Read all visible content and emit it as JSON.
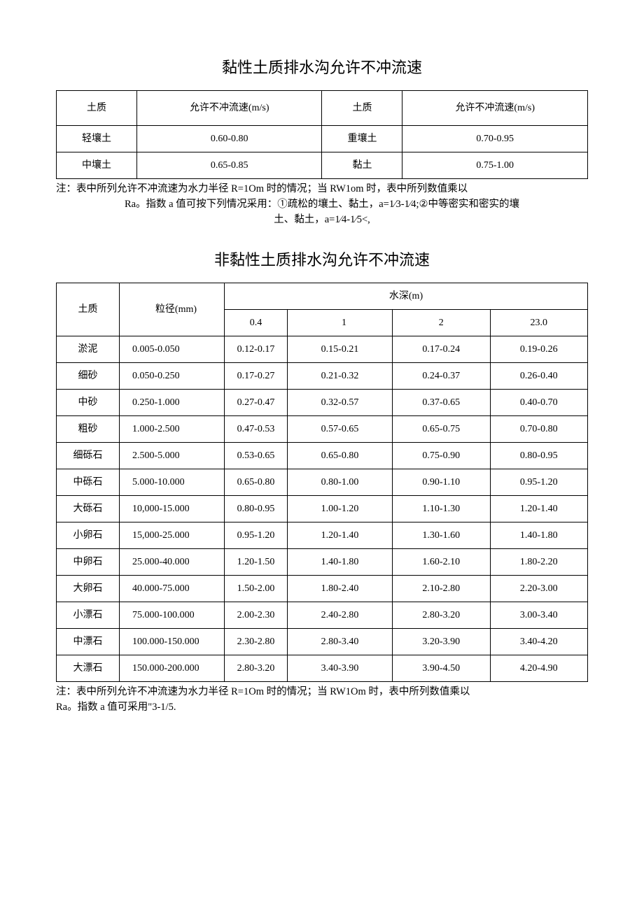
{
  "title1": "黏性土质排水沟允许不冲流速",
  "table1": {
    "headers": [
      "土质",
      "允许不冲流速(m/s)",
      "土质",
      "允许不冲流速(m/s)"
    ],
    "rows": [
      [
        "轻壤土",
        "0.60-0.80",
        "重壤土",
        "0.70-0.95"
      ],
      [
        "中壤土",
        "0.65-0.85",
        "黏土",
        "0.75-1.00"
      ]
    ]
  },
  "note1_line1": "注：表中所列允许不冲流速为水力半径 R=1Om 时的情况；当 RW1om 时，表中所列数值乘以",
  "note1_line2": "Ra。指数 a 值可按下列情况采用：①疏松的壤土、黏土，a=1⁄3-1⁄4;②中等密实和密实的壤",
  "note1_line3": "土、黏土，a=1⁄4-1⁄5<,",
  "title2": "非黏性土质排水沟允许不冲流速",
  "table2": {
    "header_soil": "土质",
    "header_size": "粒径(mm)",
    "header_depth": "水深(m)",
    "depth_cols": [
      "0.4",
      "1",
      "2",
      "23.0"
    ],
    "rows": [
      {
        "soil": "淤泥",
        "size": "0.005-0.050",
        "v": [
          "0.12-0.17",
          "0.15-0.21",
          "0.17-0.24",
          "0.19-0.26"
        ]
      },
      {
        "soil": "细砂",
        "size": "0.050-0.250",
        "v": [
          "0.17-0.27",
          "0.21-0.32",
          "0.24-0.37",
          "0.26-0.40"
        ]
      },
      {
        "soil": "中砂",
        "size": "0.250-1.000",
        "v": [
          "0.27-0.47",
          "0.32-0.57",
          "0.37-0.65",
          "0.40-0.70"
        ]
      },
      {
        "soil": "粗砂",
        "size": "1.000-2.500",
        "v": [
          "0.47-0.53",
          "0.57-0.65",
          "0.65-0.75",
          "0.70-0.80"
        ]
      },
      {
        "soil": "细砾石",
        "size": "2.500-5.000",
        "v": [
          "0.53-0.65",
          "0.65-0.80",
          "0.75-0.90",
          "0.80-0.95"
        ]
      },
      {
        "soil": "中砾石",
        "size": "5.000-10.000",
        "v": [
          "0.65-0.80",
          "0.80-1.00",
          "0.90-1.10",
          "0.95-1.20"
        ]
      },
      {
        "soil": "大砾石",
        "size": "10,000-15.000",
        "v": [
          "0.80-0.95",
          "1.00-1.20",
          "1.10-1.30",
          "1.20-1.40"
        ]
      },
      {
        "soil": "小卵石",
        "size": "15,000-25.000",
        "v": [
          "0.95-1.20",
          "1.20-1.40",
          "1.30-1.60",
          "1.40-1.80"
        ]
      },
      {
        "soil": "中卵石",
        "size": "25.000-40.000",
        "v": [
          "1.20-1.50",
          "1.40-1.80",
          "1.60-2.10",
          "1.80-2.20"
        ]
      },
      {
        "soil": "大卵石",
        "size": "40.000-75.000",
        "v": [
          "1.50-2.00",
          "1.80-2.40",
          "2.10-2.80",
          "2.20-3.00"
        ]
      },
      {
        "soil": "小漂石",
        "size": "75.000-100.000",
        "v": [
          "2.00-2.30",
          "2.40-2.80",
          "2.80-3.20",
          "3.00-3.40"
        ]
      },
      {
        "soil": "中漂石",
        "size": "100.000-150.000",
        "v": [
          "2.30-2.80",
          "2.80-3.40",
          "3.20-3.90",
          "3.40-4.20"
        ]
      },
      {
        "soil": "大漂石",
        "size": "150.000-200.000",
        "v": [
          "2.80-3.20",
          "3.40-3.90",
          "3.90-4.50",
          "4.20-4.90"
        ]
      }
    ]
  },
  "note2_line1": "注：表中所列允许不冲流速为水力半径 R=1Om 时的情况；当 RW1Om 时，表中所列数值乘以",
  "note2_line2": "Ra。指数 a 值可采用\"3-1/5."
}
